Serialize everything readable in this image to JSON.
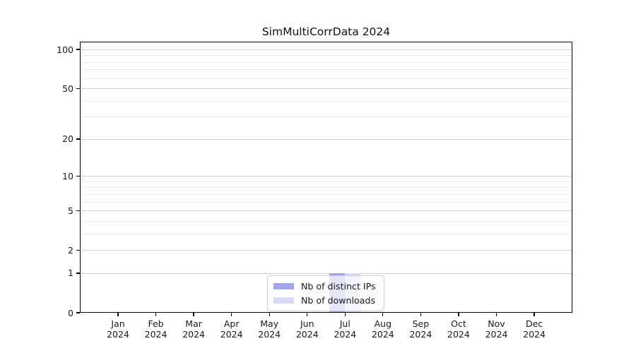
{
  "figure": {
    "background": "#ffffff",
    "title": "SimMultiCorrData 2024"
  },
  "chart_data": {
    "type": "bar",
    "title": "SimMultiCorrData 2024",
    "categories": [
      {
        "month": "Jan",
        "year": "2024"
      },
      {
        "month": "Feb",
        "year": "2024"
      },
      {
        "month": "Mar",
        "year": "2024"
      },
      {
        "month": "Apr",
        "year": "2024"
      },
      {
        "month": "May",
        "year": "2024"
      },
      {
        "month": "Jun",
        "year": "2024"
      },
      {
        "month": "Jul",
        "year": "2024"
      },
      {
        "month": "Aug",
        "year": "2024"
      },
      {
        "month": "Sep",
        "year": "2024"
      },
      {
        "month": "Oct",
        "year": "2024"
      },
      {
        "month": "Nov",
        "year": "2024"
      },
      {
        "month": "Dec",
        "year": "2024"
      }
    ],
    "series": [
      {
        "name": "Nb of distinct IPs",
        "color": "#a4a4ec",
        "values": [
          0,
          0,
          0,
          0,
          0,
          0,
          1,
          0,
          0,
          0,
          0,
          0
        ]
      },
      {
        "name": "Nb of downloads",
        "color": "#d9d9f8",
        "values": [
          0,
          0,
          0,
          0,
          0,
          0,
          1,
          0,
          0,
          0,
          0,
          0
        ]
      }
    ],
    "xlabel": "",
    "ylabel": "",
    "yscale": "log1p",
    "ylim": [
      0,
      114
    ],
    "yticks_major": [
      0,
      1,
      2,
      5,
      10,
      20,
      50,
      100
    ],
    "yticks_minor": [
      3,
      4,
      6,
      7,
      8,
      9,
      30,
      40,
      60,
      70,
      80,
      90
    ],
    "grid": "horizontal",
    "legend_position": "lower center"
  },
  "colors": {
    "major_grid": "#d0d0d0",
    "minor_grid": "#ececec",
    "axis": "#000000",
    "legend_border": "#cccccc",
    "text": "#1a1a1a"
  }
}
